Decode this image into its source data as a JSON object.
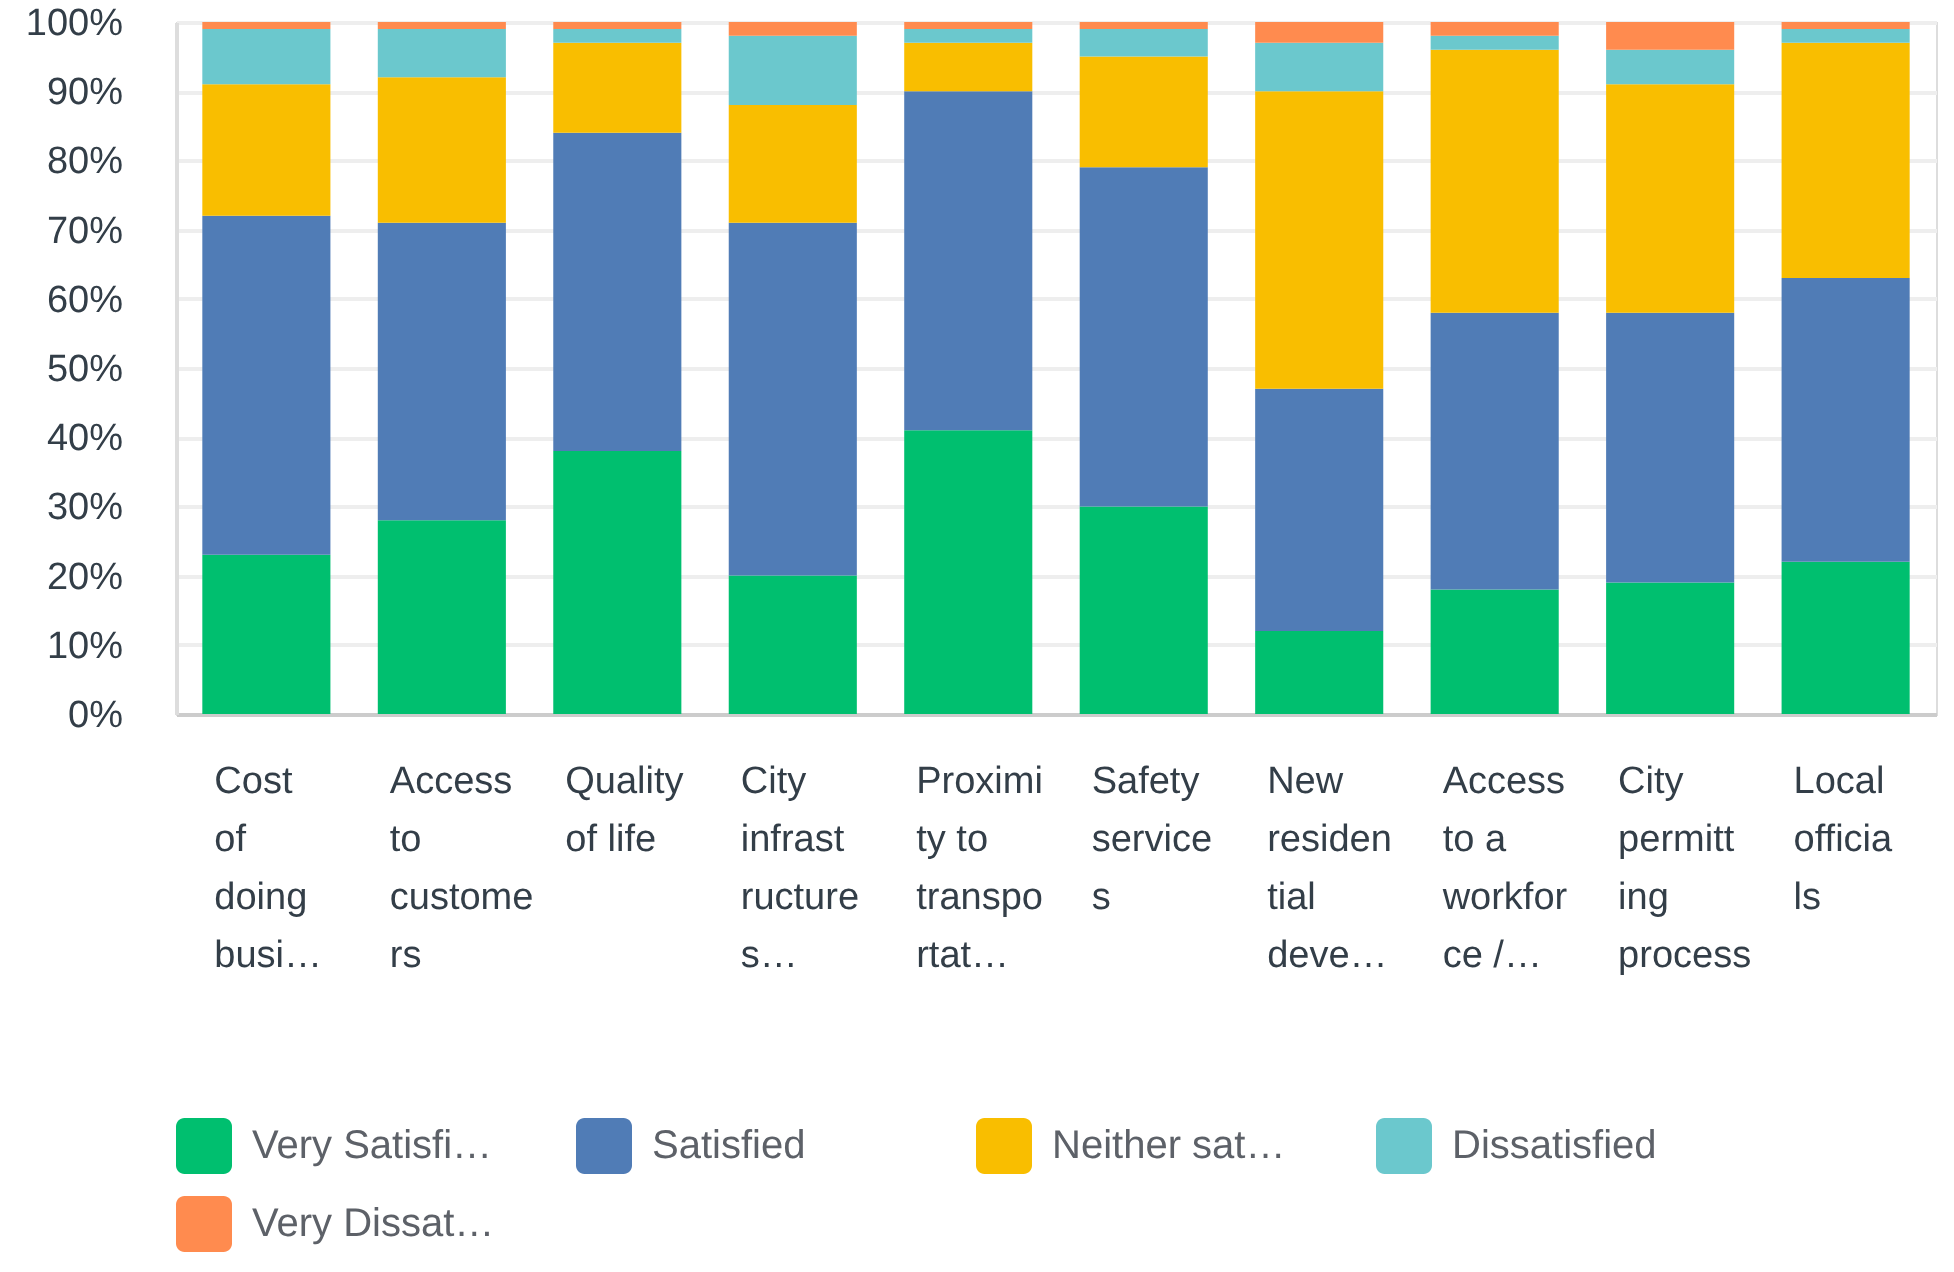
{
  "chart_data": {
    "type": "bar",
    "stacked": true,
    "categories": [
      "Cost of doing busi…",
      "Access to customers",
      "Quality of life",
      "City infrastructures…",
      "Proximity to transportat…",
      "Safety services",
      "New residential deve…",
      "Access to a workforce /…",
      "City permitting process",
      "Local officials"
    ],
    "series": [
      {
        "name": "Very Satisfi…",
        "color": "#00bf6f",
        "values": [
          23,
          28,
          38,
          20,
          41,
          30,
          12,
          18,
          19,
          22
        ]
      },
      {
        "name": "Satisfied",
        "color": "#507cb6",
        "values": [
          49,
          43,
          46,
          51,
          49,
          49,
          35,
          40,
          39,
          41
        ]
      },
      {
        "name": "Neither sat…",
        "color": "#f9be00",
        "values": [
          19,
          21,
          13,
          17,
          7,
          16,
          43,
          38,
          33,
          34
        ]
      },
      {
        "name": "Dissatisfied",
        "color": "#6bc8cd",
        "values": [
          8,
          7,
          2,
          10,
          2,
          4,
          7,
          2,
          5,
          2
        ]
      },
      {
        "name": "Very Dissat…",
        "color": "#ff8b4f",
        "values": [
          1,
          1,
          1,
          2,
          1,
          1,
          3,
          2,
          4,
          1
        ]
      }
    ],
    "ylim": [
      0,
      100
    ],
    "yticks": [
      {
        "value": 0,
        "label": "0%"
      },
      {
        "value": 10,
        "label": "10%"
      },
      {
        "value": 20,
        "label": "20%"
      },
      {
        "value": 30,
        "label": "30%"
      },
      {
        "value": 40,
        "label": "40%"
      },
      {
        "value": 50,
        "label": "50%"
      },
      {
        "value": 60,
        "label": "60%"
      },
      {
        "value": 70,
        "label": "70%"
      },
      {
        "value": 80,
        "label": "80%"
      },
      {
        "value": 90,
        "label": "90%"
      },
      {
        "value": 100,
        "label": "100%"
      }
    ],
    "grid": "y",
    "legend": "bottom"
  }
}
